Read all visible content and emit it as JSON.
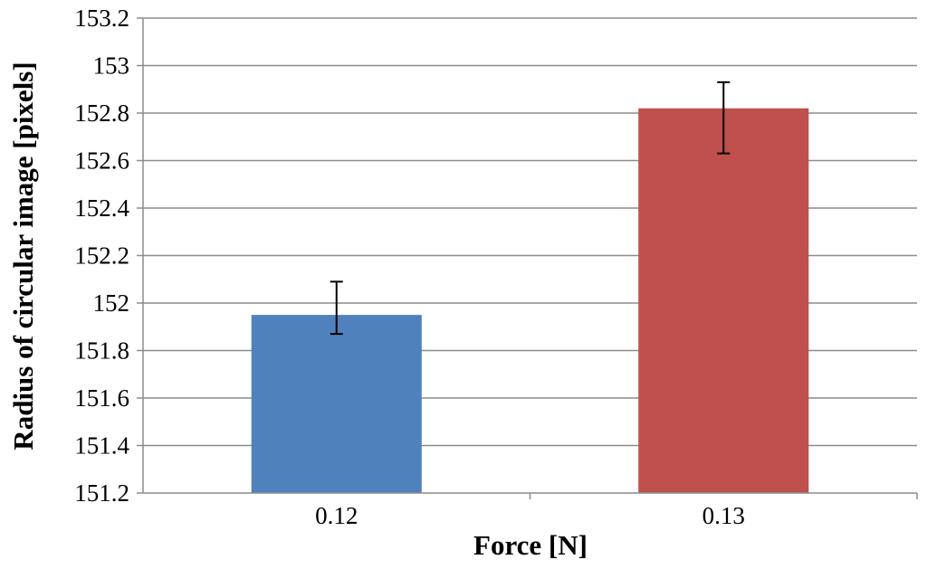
{
  "chart_data": {
    "type": "bar",
    "title": "",
    "xlabel": "Force [N]",
    "ylabel": "Radius of circular image [pixels]",
    "categories": [
      "0.12",
      "0.13"
    ],
    "values": [
      151.95,
      152.82
    ],
    "error_upper": [
      152.09,
      152.93
    ],
    "error_lower": [
      151.87,
      152.63
    ],
    "bar_colors": [
      "#4f81bd",
      "#c0504d"
    ],
    "ylim": [
      151.2,
      153.2
    ],
    "yticks": [
      "151.2",
      "151.4",
      "151.6",
      "151.8",
      "152",
      "152.2",
      "152.4",
      "152.6",
      "152.8",
      "153",
      "153.2"
    ],
    "grid": true,
    "legend": "none"
  }
}
